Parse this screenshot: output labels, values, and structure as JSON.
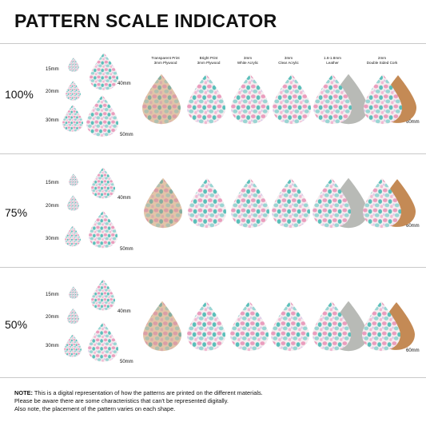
{
  "title": "PATTERN SCALE INDICATOR",
  "sizes": [
    "15mm",
    "20mm",
    "30mm",
    "40mm",
    "50mm",
    "60mm"
  ],
  "scales": [
    "100%",
    "75%",
    "50%"
  ],
  "materials": [
    {
      "line1": "Transparent Print",
      "line2": "3mm Plywood"
    },
    {
      "line1": "Bright Print",
      "line2": "3mm Plywood"
    },
    {
      "line1": "3mm",
      "line2": "White Acrylic"
    },
    {
      "line1": "3mm",
      "line2": "Clear Acrylic"
    },
    {
      "line1": "1.6-1.8mm",
      "line2": "Leather"
    },
    {
      "line1": "2mm",
      "line2": "Double Sided Cork"
    }
  ],
  "note": {
    "label": "NOTE:",
    "line1": "This is a digital representation of how the patterns are printed on the different materials.",
    "line2": "Please be aware there are some characteristics that can't be represented digitally.",
    "line3": "Also note, the placement of the pattern varies on each shape."
  },
  "colors": {
    "pink": "#e88fb5",
    "teal": "#3fb7b0",
    "cream": "#f3e6d6",
    "cork": "#c48a55",
    "leather": "#b8bab6"
  }
}
